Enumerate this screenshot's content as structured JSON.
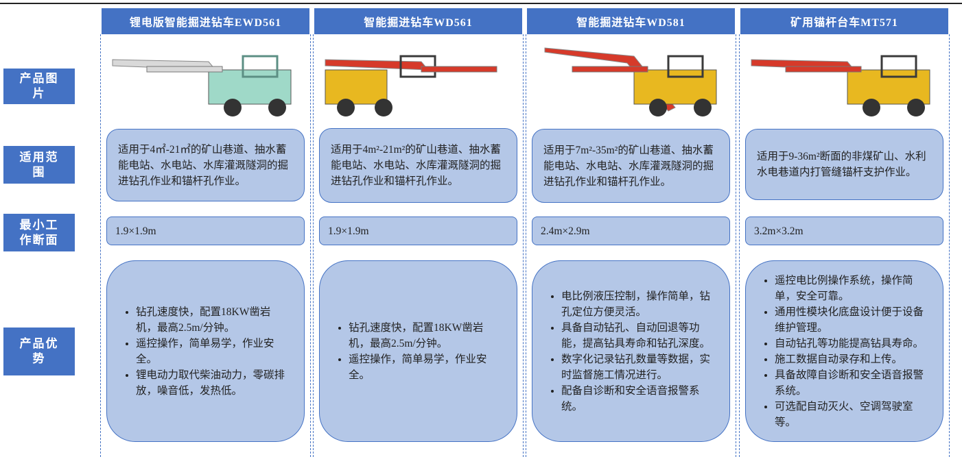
{
  "row_labels": [
    "产品图片",
    "适用范围",
    "最小工作断面",
    "产品优势"
  ],
  "columns": [
    {
      "title": "锂电版智能掘进钻车EWD561",
      "scope": "适用于4㎡-21㎡的矿山巷道、抽水蓄能电站、水电站、水库灌溉隧洞的掘进钻孔作业和锚杆孔作业。",
      "section": "1.9×1.9m",
      "advantages": [
        "钻孔速度快，配置18KW凿岩机，最高2.5m/分钟。",
        "遥控操作，简单易学，作业安全。",
        "锂电动力取代柴油动力，零碳排放，噪音低，发热低。"
      ]
    },
    {
      "title": "智能掘进钻车WD561",
      "scope": "适用于4m²-21m²的矿山巷道、抽水蓄能电站、水电站、水库灌溉隧洞的掘进钻孔作业和锚杆孔作业。",
      "section": "1.9×1.9m",
      "advantages": [
        "钻孔速度快，配置18KW凿岩机，最高2.5m/分钟。",
        "遥控操作，简单易学，作业安全。"
      ]
    },
    {
      "title": "智能掘进钻车WD581",
      "scope": "适用于7m²-35m²的矿山巷道、抽水蓄能电站、水电站、水库灌溉隧洞的掘进钻孔作业和锚杆孔作业。",
      "section": "2.4m×2.9m",
      "advantages": [
        "电比例液压控制，操作简单，钻孔定位方便灵活。",
        "具备自动钻孔、自动回退等功能，提高钻具寿命和钻孔深度。",
        "数字化记录钻孔数量等数据，实时监督施工情况进行。",
        "配备自诊断和安全语音报警系统。"
      ]
    },
    {
      "title": "矿用锚杆台车MT571",
      "scope": "适用于9-36m²断面的非煤矿山、水利水电巷道内打管缝锚杆支护作业。",
      "section": "3.2m×3.2m",
      "advantages": [
        "遥控电比例操作系统，操作简单，安全可靠。",
        "通用性模块化底盘设计便于设备维护管理。",
        "自动钻孔等功能提高钻具寿命。",
        "施工数据自动录存和上传。",
        "具备故障自诊断和安全语音报警系统。",
        "可选配自动灭火、空调驾驶室等。"
      ]
    }
  ]
}
